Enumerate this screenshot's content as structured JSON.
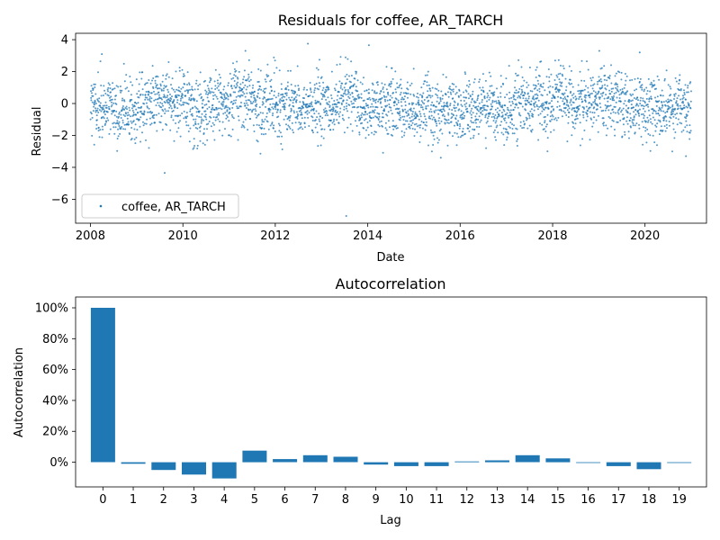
{
  "chart_data": [
    {
      "type": "scatter",
      "title": "Residuals for coffee, AR_TARCH",
      "xlabel": "Date",
      "ylabel": "Residual",
      "xlim": [
        "2007-09-06",
        "2021-05-01"
      ],
      "ylim": [
        -7.5,
        4.4
      ],
      "x_ticks": [
        "2008",
        "2010",
        "2012",
        "2014",
        "2016",
        "2018",
        "2020"
      ],
      "y_ticks": [
        4,
        2,
        0,
        -2,
        -4,
        -6
      ],
      "legend": {
        "position": "lower-left",
        "entries": [
          "coffee, AR_TARCH"
        ]
      },
      "series": [
        {
          "name": "coffee, AR_TARCH",
          "color": "#1f77b4",
          "date_range": [
            "2008-01-02",
            "2020-12-31"
          ],
          "frequency": "daily (business days)",
          "approx_points": 3270,
          "approx_std": 1.0,
          "outliers": [
            {
              "x": "2013-07-15",
              "y": -7.05
            },
            {
              "x": "2009-08-10",
              "y": -4.35
            },
            {
              "x": "2012-09-15",
              "y": 3.75
            },
            {
              "x": "2014-01-10",
              "y": 3.65
            },
            {
              "x": "2019-01-05",
              "y": 3.3
            },
            {
              "x": "2019-11-20",
              "y": 3.2
            },
            {
              "x": "2011-05-10",
              "y": 3.3
            },
            {
              "x": "2008-04-01",
              "y": 3.1
            },
            {
              "x": "2015-08-01",
              "y": -3.4
            },
            {
              "x": "2020-11-20",
              "y": -3.3
            }
          ]
        }
      ]
    },
    {
      "type": "bar",
      "title": "Autocorrelation",
      "xlabel": "Lag",
      "ylabel": "Autocorrelation",
      "ylim": [
        -0.16,
        1.07
      ],
      "y_ticks": [
        "100%",
        "80%",
        "60%",
        "40%",
        "20%",
        "0%"
      ],
      "categories": [
        "0",
        "1",
        "2",
        "3",
        "4",
        "5",
        "6",
        "7",
        "8",
        "9",
        "10",
        "11",
        "12",
        "13",
        "14",
        "15",
        "16",
        "17",
        "18",
        "19"
      ],
      "values": [
        1.0,
        -0.01,
        -0.05,
        -0.08,
        -0.105,
        0.075,
        0.02,
        0.045,
        0.035,
        -0.015,
        -0.025,
        -0.025,
        0.005,
        0.012,
        0.045,
        0.025,
        -0.003,
        -0.025,
        -0.045,
        -0.002
      ],
      "color": "#1f77b4"
    }
  ]
}
